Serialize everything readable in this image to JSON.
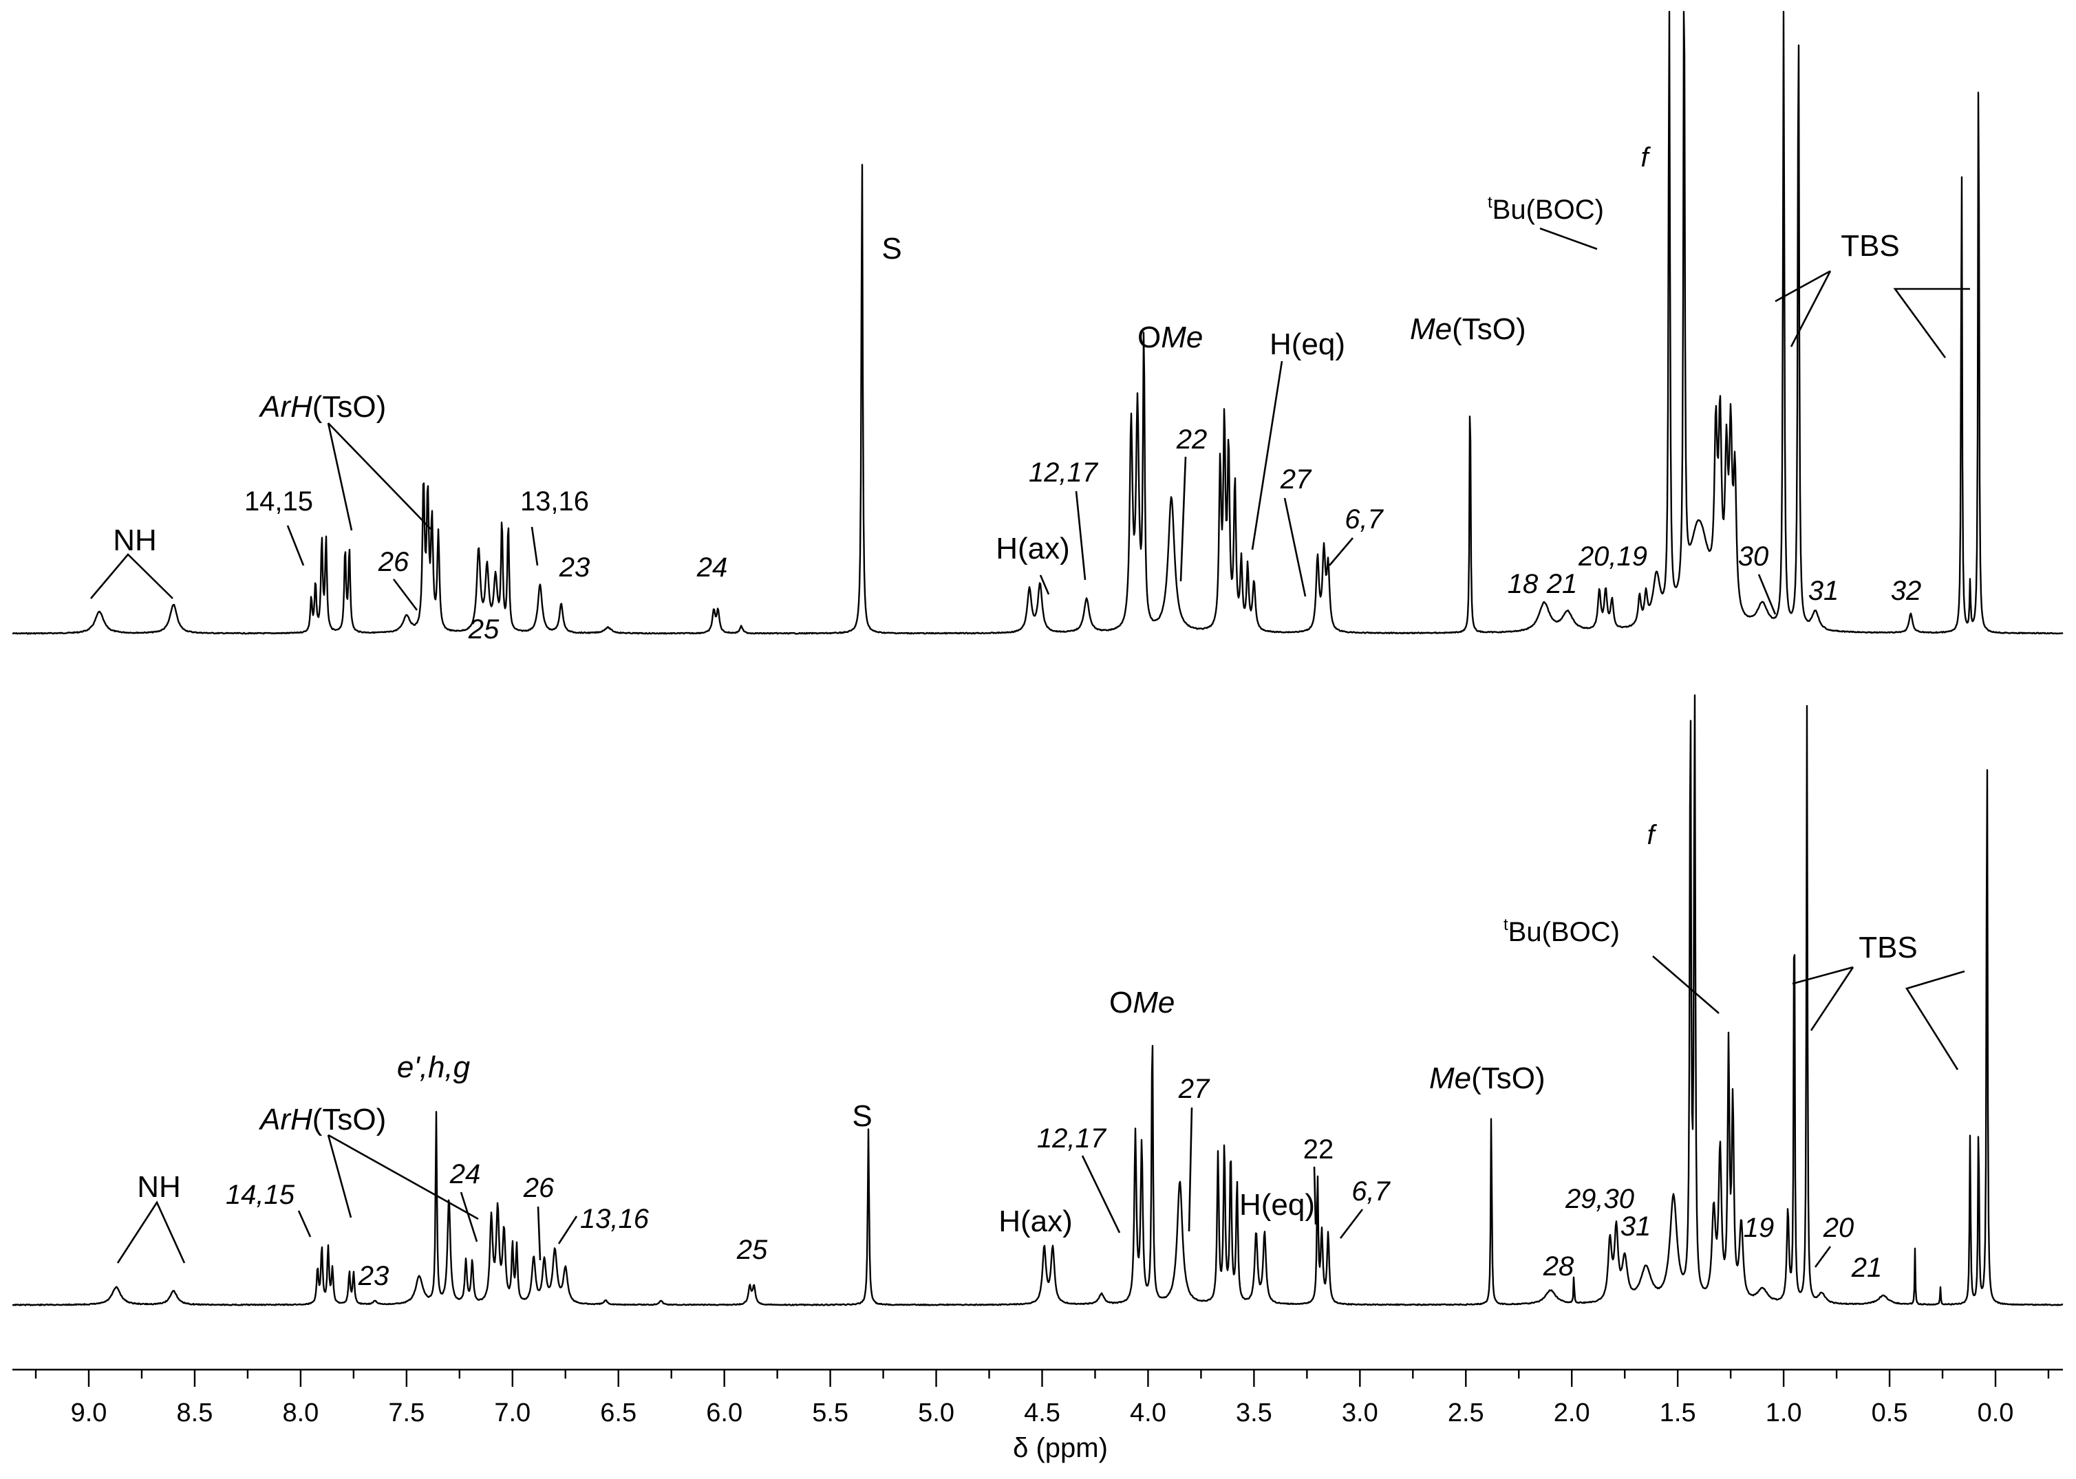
{
  "chart_data": {
    "type": "line",
    "title": "",
    "xlabel": "δ (ppm)",
    "ylabel": "",
    "xlim": [
      9.3,
      -0.3
    ],
    "x_reversed": true,
    "grid": false,
    "ticks": {
      "major": [
        9.0,
        8.5,
        8.0,
        7.5,
        7.0,
        6.5,
        6.0,
        5.5,
        5.0,
        4.5,
        4.0,
        3.5,
        3.0,
        2.5,
        2.0,
        1.5,
        1.0,
        0.5,
        0.0
      ],
      "labels": [
        "9.0",
        "8.5",
        "8.0",
        "7.5",
        "7.0",
        "6.5",
        "6.0",
        "5.5",
        "5.0",
        "4.5",
        "4.0",
        "3.5",
        "3.0",
        "2.5",
        "2.0",
        "1.5",
        "1.0",
        "0.5",
        "0.0"
      ]
    },
    "series": [
      {
        "name": "top spectrum",
        "peaks": [
          {
            "ppm": 8.95,
            "h": 0.045,
            "w": 0.025
          },
          {
            "ppm": 8.6,
            "h": 0.06,
            "w": 0.02
          },
          {
            "ppm": 7.95,
            "h": 0.07,
            "w": 0.005
          },
          {
            "ppm": 7.93,
            "h": 0.1,
            "w": 0.005
          },
          {
            "ppm": 7.9,
            "h": 0.19,
            "w": 0.005
          },
          {
            "ppm": 7.88,
            "h": 0.19,
            "w": 0.005
          },
          {
            "ppm": 7.79,
            "h": 0.17,
            "w": 0.005
          },
          {
            "ppm": 7.77,
            "h": 0.17,
            "w": 0.005
          },
          {
            "ppm": 7.5,
            "h": 0.035,
            "w": 0.02
          },
          {
            "ppm": 7.42,
            "h": 0.3,
            "w": 0.006
          },
          {
            "ppm": 7.4,
            "h": 0.27,
            "w": 0.006
          },
          {
            "ppm": 7.38,
            "h": 0.22,
            "w": 0.006
          },
          {
            "ppm": 7.35,
            "h": 0.2,
            "w": 0.006
          },
          {
            "ppm": 7.16,
            "h": 0.17,
            "w": 0.01
          },
          {
            "ppm": 7.12,
            "h": 0.13,
            "w": 0.01
          },
          {
            "ppm": 7.08,
            "h": 0.11,
            "w": 0.01
          },
          {
            "ppm": 7.05,
            "h": 0.22,
            "w": 0.005
          },
          {
            "ppm": 7.02,
            "h": 0.22,
            "w": 0.005
          },
          {
            "ppm": 6.87,
            "h": 0.1,
            "w": 0.012
          },
          {
            "ppm": 6.77,
            "h": 0.06,
            "w": 0.01
          },
          {
            "ppm": 6.55,
            "h": 0.012,
            "w": 0.02
          },
          {
            "ppm": 6.05,
            "h": 0.045,
            "w": 0.008
          },
          {
            "ppm": 6.03,
            "h": 0.045,
            "w": 0.008
          },
          {
            "ppm": 5.92,
            "h": 0.015,
            "w": 0.008
          },
          {
            "ppm": 5.35,
            "h": 1.0,
            "w": 0.004
          },
          {
            "ppm": 4.56,
            "h": 0.09,
            "w": 0.012
          },
          {
            "ppm": 4.51,
            "h": 0.1,
            "w": 0.012
          },
          {
            "ppm": 4.29,
            "h": 0.07,
            "w": 0.015
          },
          {
            "ppm": 4.08,
            "h": 0.42,
            "w": 0.008
          },
          {
            "ppm": 4.05,
            "h": 0.45,
            "w": 0.008
          },
          {
            "ppm": 4.02,
            "h": 0.6,
            "w": 0.005
          },
          {
            "ppm": 3.89,
            "h": 0.28,
            "w": 0.018
          },
          {
            "ppm": 3.66,
            "h": 0.33,
            "w": 0.006
          },
          {
            "ppm": 3.64,
            "h": 0.41,
            "w": 0.006
          },
          {
            "ppm": 3.62,
            "h": 0.36,
            "w": 0.006
          },
          {
            "ppm": 3.59,
            "h": 0.3,
            "w": 0.006
          },
          {
            "ppm": 3.56,
            "h": 0.14,
            "w": 0.006
          },
          {
            "ppm": 3.53,
            "h": 0.13,
            "w": 0.006
          },
          {
            "ppm": 3.5,
            "h": 0.1,
            "w": 0.008
          },
          {
            "ppm": 3.2,
            "h": 0.15,
            "w": 0.008
          },
          {
            "ppm": 3.17,
            "h": 0.16,
            "w": 0.008
          },
          {
            "ppm": 3.15,
            "h": 0.13,
            "w": 0.008
          },
          {
            "ppm": 2.48,
            "h": 0.55,
            "w": 0.003
          },
          {
            "ppm": 2.13,
            "h": 0.06,
            "w": 0.03
          },
          {
            "ppm": 2.02,
            "h": 0.04,
            "w": 0.03
          },
          {
            "ppm": 1.87,
            "h": 0.08,
            "w": 0.008
          },
          {
            "ppm": 1.84,
            "h": 0.08,
            "w": 0.008
          },
          {
            "ppm": 1.81,
            "h": 0.06,
            "w": 0.008
          },
          {
            "ppm": 1.68,
            "h": 0.06,
            "w": 0.008
          },
          {
            "ppm": 1.65,
            "h": 0.06,
            "w": 0.008
          },
          {
            "ppm": 1.6,
            "h": 0.1,
            "w": 0.02
          },
          {
            "ppm": 1.54,
            "h": 1.35,
            "w": 0.004
          },
          {
            "ppm": 1.47,
            "h": 1.35,
            "w": 0.004
          },
          {
            "ppm": 1.4,
            "h": 0.22,
            "w": 0.06
          },
          {
            "ppm": 1.32,
            "h": 0.33,
            "w": 0.008
          },
          {
            "ppm": 1.3,
            "h": 0.36,
            "w": 0.008
          },
          {
            "ppm": 1.27,
            "h": 0.3,
            "w": 0.008
          },
          {
            "ppm": 1.25,
            "h": 0.35,
            "w": 0.008
          },
          {
            "ppm": 1.23,
            "h": 0.28,
            "w": 0.008
          },
          {
            "ppm": 1.1,
            "h": 0.05,
            "w": 0.03
          },
          {
            "ppm": 1.0,
            "h": 1.3,
            "w": 0.004
          },
          {
            "ppm": 0.93,
            "h": 1.3,
            "w": 0.004
          },
          {
            "ppm": 0.85,
            "h": 0.04,
            "w": 0.02
          },
          {
            "ppm": 0.4,
            "h": 0.04,
            "w": 0.01
          },
          {
            "ppm": 0.16,
            "h": 1.02,
            "w": 0.003
          },
          {
            "ppm": 0.12,
            "h": 0.1,
            "w": 0.003
          },
          {
            "ppm": 0.08,
            "h": 1.3,
            "w": 0.003
          }
        ],
        "labels": [
          {
            "text": "NH"
          },
          {
            "text": "14,15"
          },
          {
            "text": "ArH"
          },
          {
            "text": "(TsO)"
          },
          {
            "text": "26"
          },
          {
            "text": "25"
          },
          {
            "text": "13,16"
          },
          {
            "text": "23"
          },
          {
            "text": "24"
          },
          {
            "text": "S"
          },
          {
            "text": "H(ax)"
          },
          {
            "text": "12,17"
          },
          {
            "text": "O"
          },
          {
            "text": "Me"
          },
          {
            "text": "22"
          },
          {
            "text": "H(eq)"
          },
          {
            "text": "27"
          },
          {
            "text": "6,7"
          },
          {
            "text": "Me"
          },
          {
            "text": "(TsO)"
          },
          {
            "text": "18"
          },
          {
            "text": "21"
          },
          {
            "text": "20,19"
          },
          {
            "text": "f"
          },
          {
            "text": "t"
          },
          {
            "text": "Bu(BOC)"
          },
          {
            "text": "30"
          },
          {
            "text": "31"
          },
          {
            "text": "32"
          },
          {
            "text": "TBS"
          }
        ]
      },
      {
        "name": "bottom spectrum",
        "peaks": [
          {
            "ppm": 8.87,
            "h": 0.05,
            "w": 0.025
          },
          {
            "ppm": 8.6,
            "h": 0.04,
            "w": 0.02
          },
          {
            "ppm": 7.92,
            "h": 0.1,
            "w": 0.005
          },
          {
            "ppm": 7.9,
            "h": 0.16,
            "w": 0.005
          },
          {
            "ppm": 7.87,
            "h": 0.16,
            "w": 0.005
          },
          {
            "ppm": 7.85,
            "h": 0.1,
            "w": 0.005
          },
          {
            "ppm": 7.77,
            "h": 0.09,
            "w": 0.005
          },
          {
            "ppm": 7.75,
            "h": 0.09,
            "w": 0.005
          },
          {
            "ppm": 7.65,
            "h": 0.01,
            "w": 0.01
          },
          {
            "ppm": 7.44,
            "h": 0.08,
            "w": 0.02
          },
          {
            "ppm": 7.36,
            "h": 0.54,
            "w": 0.004
          },
          {
            "ppm": 7.3,
            "h": 0.3,
            "w": 0.008
          },
          {
            "ppm": 7.22,
            "h": 0.12,
            "w": 0.006
          },
          {
            "ppm": 7.19,
            "h": 0.12,
            "w": 0.006
          },
          {
            "ppm": 7.1,
            "h": 0.24,
            "w": 0.008
          },
          {
            "ppm": 7.07,
            "h": 0.26,
            "w": 0.008
          },
          {
            "ppm": 7.04,
            "h": 0.2,
            "w": 0.008
          },
          {
            "ppm": 7.0,
            "h": 0.16,
            "w": 0.005
          },
          {
            "ppm": 6.98,
            "h": 0.16,
            "w": 0.005
          },
          {
            "ppm": 6.9,
            "h": 0.13,
            "w": 0.01
          },
          {
            "ppm": 6.85,
            "h": 0.12,
            "w": 0.01
          },
          {
            "ppm": 6.8,
            "h": 0.15,
            "w": 0.012
          },
          {
            "ppm": 6.75,
            "h": 0.1,
            "w": 0.012
          },
          {
            "ppm": 6.56,
            "h": 0.012,
            "w": 0.01
          },
          {
            "ppm": 6.3,
            "h": 0.012,
            "w": 0.01
          },
          {
            "ppm": 5.88,
            "h": 0.05,
            "w": 0.008
          },
          {
            "ppm": 5.86,
            "h": 0.05,
            "w": 0.008
          },
          {
            "ppm": 5.32,
            "h": 0.5,
            "w": 0.004
          },
          {
            "ppm": 4.49,
            "h": 0.16,
            "w": 0.01
          },
          {
            "ppm": 4.45,
            "h": 0.16,
            "w": 0.01
          },
          {
            "ppm": 4.22,
            "h": 0.03,
            "w": 0.015
          },
          {
            "ppm": 4.06,
            "h": 0.48,
            "w": 0.006
          },
          {
            "ppm": 4.03,
            "h": 0.45,
            "w": 0.006
          },
          {
            "ppm": 3.98,
            "h": 0.8,
            "w": 0.004
          },
          {
            "ppm": 3.85,
            "h": 0.35,
            "w": 0.015
          },
          {
            "ppm": 3.67,
            "h": 0.42,
            "w": 0.005
          },
          {
            "ppm": 3.64,
            "h": 0.44,
            "w": 0.005
          },
          {
            "ppm": 3.61,
            "h": 0.42,
            "w": 0.005
          },
          {
            "ppm": 3.58,
            "h": 0.34,
            "w": 0.005
          },
          {
            "ppm": 3.49,
            "h": 0.2,
            "w": 0.008
          },
          {
            "ppm": 3.45,
            "h": 0.2,
            "w": 0.008
          },
          {
            "ppm": 3.2,
            "h": 0.36,
            "w": 0.004
          },
          {
            "ppm": 3.18,
            "h": 0.2,
            "w": 0.006
          },
          {
            "ppm": 3.15,
            "h": 0.2,
            "w": 0.006
          },
          {
            "ppm": 2.38,
            "h": 0.56,
            "w": 0.003
          },
          {
            "ppm": 2.1,
            "h": 0.04,
            "w": 0.03
          },
          {
            "ppm": 1.99,
            "h": 0.09,
            "w": 0.002
          },
          {
            "ppm": 1.82,
            "h": 0.17,
            "w": 0.01
          },
          {
            "ppm": 1.79,
            "h": 0.2,
            "w": 0.01
          },
          {
            "ppm": 1.75,
            "h": 0.12,
            "w": 0.015
          },
          {
            "ppm": 1.65,
            "h": 0.1,
            "w": 0.03
          },
          {
            "ppm": 1.52,
            "h": 0.3,
            "w": 0.02
          },
          {
            "ppm": 1.44,
            "h": 1.7,
            "w": 0.004
          },
          {
            "ppm": 1.42,
            "h": 1.7,
            "w": 0.004
          },
          {
            "ppm": 1.33,
            "h": 0.25,
            "w": 0.01
          },
          {
            "ppm": 1.3,
            "h": 0.42,
            "w": 0.008
          },
          {
            "ppm": 1.26,
            "h": 0.7,
            "w": 0.005
          },
          {
            "ppm": 1.24,
            "h": 0.55,
            "w": 0.006
          },
          {
            "ppm": 1.2,
            "h": 0.22,
            "w": 0.01
          },
          {
            "ppm": 1.1,
            "h": 0.04,
            "w": 0.03
          },
          {
            "ppm": 0.98,
            "h": 0.26,
            "w": 0.006
          },
          {
            "ppm": 0.95,
            "h": 1.26,
            "w": 0.003
          },
          {
            "ppm": 0.89,
            "h": 1.7,
            "w": 0.003
          },
          {
            "ppm": 0.82,
            "h": 0.03,
            "w": 0.02
          },
          {
            "ppm": 0.53,
            "h": 0.025,
            "w": 0.03
          },
          {
            "ppm": 0.38,
            "h": 0.16,
            "w": 0.002
          },
          {
            "ppm": 0.26,
            "h": 0.05,
            "w": 0.002
          },
          {
            "ppm": 0.12,
            "h": 0.48,
            "w": 0.003
          },
          {
            "ppm": 0.08,
            "h": 0.54,
            "w": 0.003
          },
          {
            "ppm": 0.04,
            "h": 1.7,
            "w": 0.003
          }
        ],
        "labels": [
          {
            "text": "NH"
          },
          {
            "text": "14,15"
          },
          {
            "text": "ArH"
          },
          {
            "text": "(TsO)"
          },
          {
            "text": "23"
          },
          {
            "text": "e',h,g"
          },
          {
            "text": "24"
          },
          {
            "text": "26"
          },
          {
            "text": "13,16"
          },
          {
            "text": "25"
          },
          {
            "text": "S"
          },
          {
            "text": "12,17"
          },
          {
            "text": "H(ax)"
          },
          {
            "text": "O"
          },
          {
            "text": "Me"
          },
          {
            "text": "27"
          },
          {
            "text": "H(eq)"
          },
          {
            "text": "22"
          },
          {
            "text": "6,7"
          },
          {
            "text": "Me"
          },
          {
            "text": "(TsO)"
          },
          {
            "text": "28"
          },
          {
            "text": "29,30"
          },
          {
            "text": "31"
          },
          {
            "text": "f"
          },
          {
            "text": "t"
          },
          {
            "text": "Bu(BOC)"
          },
          {
            "text": "TBS"
          },
          {
            "text": "19"
          },
          {
            "text": "20"
          },
          {
            "text": "21"
          }
        ]
      }
    ]
  }
}
